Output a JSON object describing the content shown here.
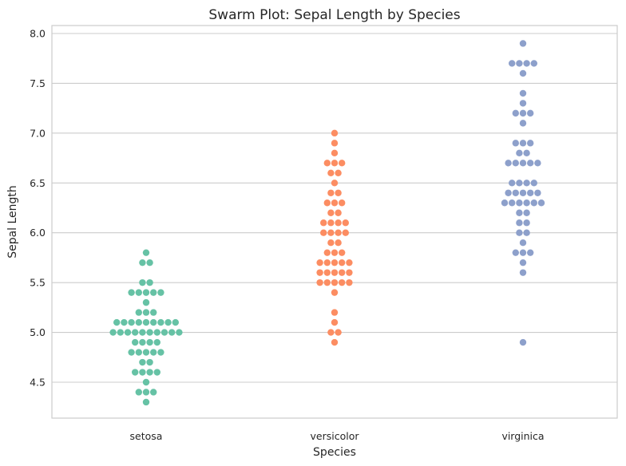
{
  "chart_data": {
    "type": "scatter",
    "subtype": "swarm",
    "title": "Swarm Plot: Sepal Length by Species",
    "xlabel": "Species",
    "ylabel": "Sepal Length",
    "ylim": [
      4.2,
      8.1
    ],
    "yticks": [
      "4.5",
      "5.0",
      "5.5",
      "6.0",
      "6.5",
      "7.0",
      "7.5",
      "8.0"
    ],
    "grid": true,
    "categories": [
      "setosa",
      "versicolor",
      "virginica"
    ],
    "colors": [
      "#66c2a5",
      "#fc8d62",
      "#8da0cb"
    ],
    "series": [
      {
        "category": "setosa",
        "values": [
          5.8,
          5.7,
          5.7,
          5.5,
          5.5,
          5.4,
          5.4,
          5.4,
          5.4,
          5.4,
          5.3,
          5.2,
          5.2,
          5.2,
          5.1,
          5.1,
          5.1,
          5.1,
          5.1,
          5.1,
          5.1,
          5.1,
          5.1,
          5.0,
          5.0,
          5.0,
          5.0,
          5.0,
          5.0,
          5.0,
          5.0,
          5.0,
          5.0,
          4.9,
          4.9,
          4.9,
          4.9,
          4.8,
          4.8,
          4.8,
          4.8,
          4.8,
          4.7,
          4.7,
          4.6,
          4.6,
          4.6,
          4.6,
          4.5,
          4.4,
          4.4,
          4.4,
          4.3
        ]
      },
      {
        "category": "versicolor",
        "values": [
          7.0,
          6.9,
          6.8,
          6.7,
          6.7,
          6.7,
          6.6,
          6.6,
          6.5,
          6.4,
          6.4,
          6.3,
          6.3,
          6.3,
          6.2,
          6.2,
          6.1,
          6.1,
          6.1,
          6.1,
          6.0,
          6.0,
          6.0,
          6.0,
          5.9,
          5.9,
          5.8,
          5.8,
          5.8,
          5.7,
          5.7,
          5.7,
          5.7,
          5.7,
          5.6,
          5.6,
          5.6,
          5.6,
          5.6,
          5.5,
          5.5,
          5.5,
          5.5,
          5.5,
          5.4,
          5.2,
          5.1,
          5.0,
          5.0,
          4.9
        ]
      },
      {
        "category": "virginica",
        "values": [
          7.9,
          7.7,
          7.7,
          7.7,
          7.7,
          7.6,
          7.4,
          7.3,
          7.2,
          7.2,
          7.2,
          7.1,
          6.9,
          6.9,
          6.9,
          6.8,
          6.8,
          6.7,
          6.7,
          6.7,
          6.7,
          6.7,
          6.5,
          6.5,
          6.5,
          6.5,
          6.4,
          6.4,
          6.4,
          6.4,
          6.4,
          6.3,
          6.3,
          6.3,
          6.3,
          6.3,
          6.3,
          6.2,
          6.2,
          6.1,
          6.1,
          6.0,
          6.0,
          5.9,
          5.8,
          5.8,
          5.8,
          5.7,
          5.6,
          4.9
        ]
      }
    ]
  }
}
